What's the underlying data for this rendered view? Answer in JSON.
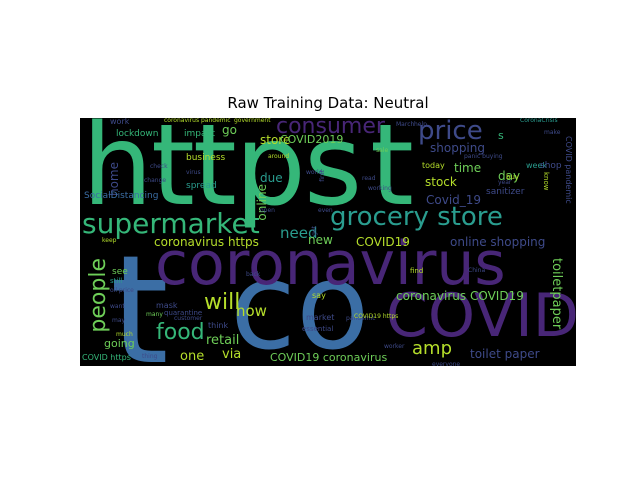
{
  "title": "Raw Training Data: Neutral",
  "palette": {
    "background": "#000000",
    "teal": "#35b779",
    "green": "#2a9d8f",
    "blue": "#3b6ea5",
    "indigo": "#3e4a89",
    "purple": "#482677",
    "yellowgreen": "#b5de2b",
    "lime": "#6ece58"
  },
  "words": [
    "https",
    "t",
    "co",
    "coronavirus",
    "COVID",
    "supermarket",
    "grocery store",
    "price",
    "consumer",
    "people",
    "food",
    "will",
    "amp",
    "now",
    "retail",
    "going",
    "one",
    "via",
    "need",
    "new",
    "coronavirus https",
    "COVID19",
    "online shopping",
    "coronavirus COVID19",
    "toiletpaper",
    "toilet paper",
    "stock",
    "Covid_19",
    "time",
    "day",
    "shopping",
    "store",
    "home",
    "due",
    "online",
    "go",
    "lockdown",
    "impact",
    "work",
    "business",
    "spread",
    "SocialDistancing",
    "COVID2019",
    "COVID19 coronavirus",
    "COVID https",
    "sanitizer",
    "today",
    "week",
    "shop",
    "see",
    "mask",
    "think",
    "say",
    "market",
    "essential",
    "find",
    "buy",
    "s",
    "coronavirus pandemic",
    "government",
    "CoronaCrisis",
    "March",
    "COVID pandemic",
    "know",
    "world",
    "around",
    "open",
    "even",
    "sale",
    "worker",
    "pandemic",
    "quarantine",
    "many",
    "still",
    "back",
    "thing",
    "much",
    "keep",
    "oil price",
    "customer",
    "check",
    "make",
    "change",
    "virus",
    "first",
    "read",
    "working",
    "year",
    "help",
    "want",
    "may",
    "China",
    "get",
    "COVID19 https",
    "everyone",
    "panic buying"
  ]
}
